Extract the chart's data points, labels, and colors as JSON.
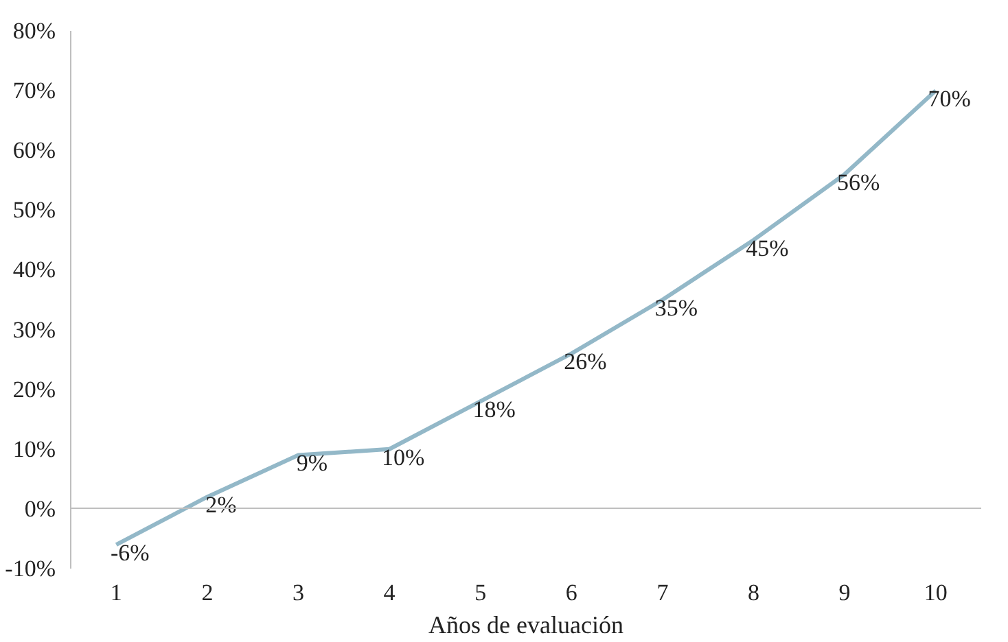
{
  "chart_data": {
    "type": "line",
    "xlabel": "Años de evaluación",
    "categories": [
      "1",
      "2",
      "3",
      "4",
      "5",
      "6",
      "7",
      "8",
      "9",
      "10"
    ],
    "values": [
      -6,
      2,
      9,
      10,
      18,
      26,
      35,
      45,
      56,
      70
    ],
    "value_labels": [
      "-6%",
      "2%",
      "9%",
      "10%",
      "18%",
      "26%",
      "35%",
      "45%",
      "56%",
      "70%"
    ],
    "color": "#93b8c8",
    "ylim": [
      -10,
      80
    ],
    "yticks": [
      {
        "value": -10,
        "label": "-10%"
      },
      {
        "value": 0,
        "label": "0%"
      },
      {
        "value": 10,
        "label": "10%"
      },
      {
        "value": 20,
        "label": "20%"
      },
      {
        "value": 30,
        "label": "30%"
      },
      {
        "value": 40,
        "label": "40%"
      },
      {
        "value": 50,
        "label": "50%"
      },
      {
        "value": 60,
        "label": "60%"
      },
      {
        "value": 70,
        "label": "70%"
      },
      {
        "value": 80,
        "label": "80%"
      }
    ],
    "marker": "none",
    "line_style": "solid"
  }
}
